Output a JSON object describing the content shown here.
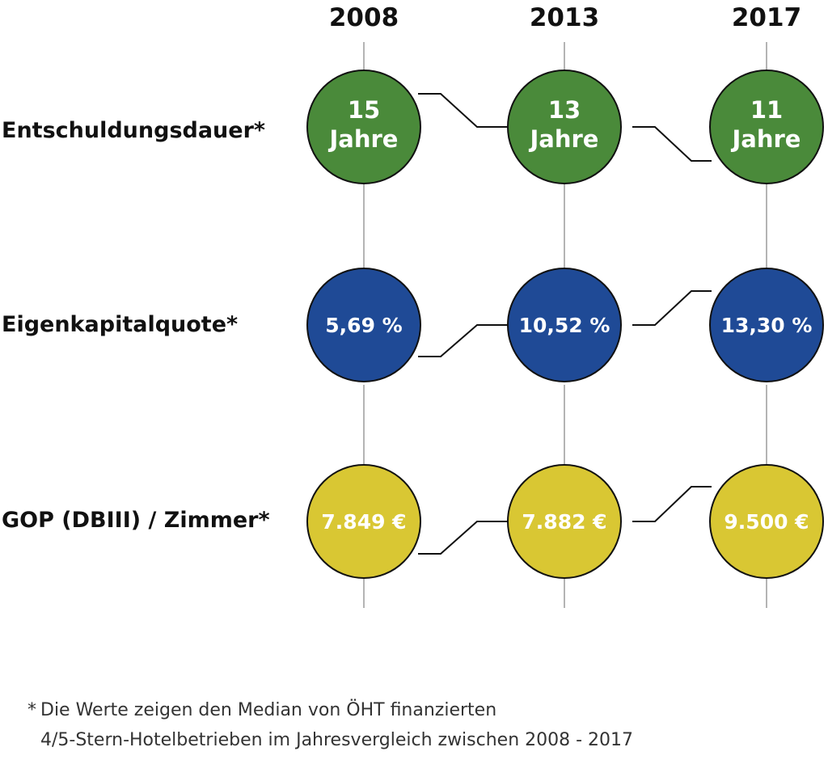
{
  "years": [
    "2008",
    "2013",
    "2017"
  ],
  "rows": [
    {
      "label": "Entschuldungsdauer*",
      "color": "#4a8a3a",
      "values": [
        {
          "l1": "15",
          "l2": "Jahre"
        },
        {
          "l1": "13",
          "l2": "Jahre"
        },
        {
          "l1": "11",
          "l2": "Jahre"
        }
      ]
    },
    {
      "label": "Eigenkapitalquote*",
      "color": "#1f4a96",
      "values": [
        {
          "l1": "5,69 %"
        },
        {
          "l1": "10,52 %"
        },
        {
          "l1": "13,30 %"
        }
      ]
    },
    {
      "label": "GOP (DBIII) / Zimmer*",
      "color": "#d9c733",
      "values": [
        {
          "l1": "7.849 €"
        },
        {
          "l1": "7.882 €"
        },
        {
          "l1": "9.500 €"
        }
      ]
    }
  ],
  "footnote": {
    "marker": "*",
    "line1": "Die Werte zeigen den Median von ÖHT finanzierten",
    "line2": "4/5-Stern-Hotelbetrieben im Jahresvergleich zwischen 2008 - 2017"
  }
}
